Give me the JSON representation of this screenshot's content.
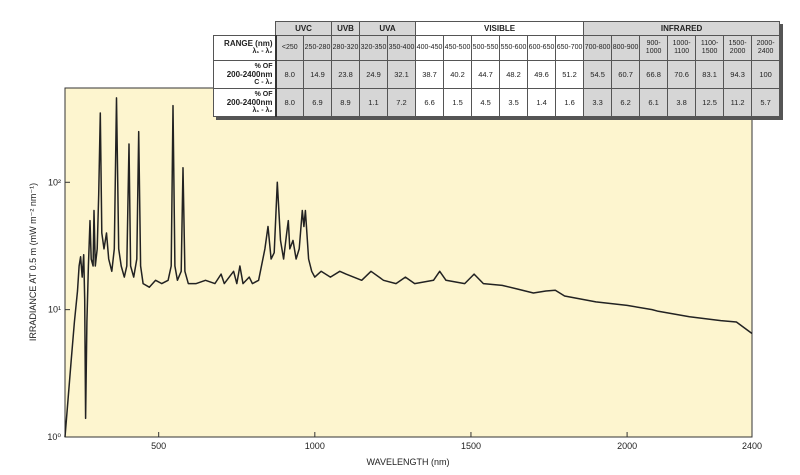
{
  "chart_data": {
    "type": "line",
    "xlabel": "WAVELENGTH (nm)",
    "ylabel": "IRRADIANCE AT 0.5 m (mW m⁻² nm⁻¹)",
    "x": [
      200,
      210,
      220,
      230,
      240,
      245,
      250,
      255,
      260,
      263,
      266,
      270,
      275,
      280,
      284,
      290,
      293,
      297,
      303,
      308,
      313,
      318,
      325,
      333,
      340,
      350,
      358,
      365,
      372,
      380,
      390,
      398,
      405,
      410,
      420,
      430,
      436,
      442,
      450,
      470,
      490,
      510,
      530,
      540,
      546,
      552,
      560,
      572,
      578,
      584,
      595,
      620,
      650,
      680,
      700,
      710,
      740,
      750,
      760,
      770,
      790,
      800,
      820,
      840,
      850,
      860,
      870,
      880,
      890,
      900,
      910,
      915,
      920,
      930,
      940,
      950,
      960,
      965,
      970,
      980,
      990,
      1000,
      1020,
      1050,
      1080,
      1100,
      1150,
      1180,
      1220,
      1260,
      1290,
      1320,
      1380,
      1400,
      1420,
      1480,
      1510,
      1540,
      1600,
      1650,
      1700,
      1740,
      1770,
      1800,
      1900,
      2000,
      2080,
      2100,
      2200,
      2300,
      2350,
      2400
    ],
    "values": [
      1,
      2,
      4,
      8,
      14,
      22,
      26,
      18,
      27,
      12,
      1.4,
      8,
      22,
      50,
      25,
      22,
      60,
      22,
      30,
      80,
      350,
      40,
      30,
      40,
      25,
      20,
      30,
      460,
      30,
      22,
      18,
      22,
      200,
      22,
      18,
      25,
      250,
      22,
      16,
      15,
      17,
      16,
      17,
      22,
      400,
      22,
      17,
      20,
      130,
      20,
      16,
      16,
      17,
      16,
      19,
      16,
      20,
      16,
      22,
      16,
      18,
      16,
      17,
      30,
      45,
      25,
      28,
      100,
      35,
      25,
      40,
      50,
      30,
      35,
      25,
      30,
      60,
      45,
      60,
      25,
      20,
      18,
      20,
      18,
      20,
      19,
      17,
      20,
      17,
      16,
      18,
      16,
      17,
      20,
      17,
      16,
      19,
      16,
      15.5,
      14.5,
      13.5,
      14,
      14.2,
      12.8,
      11.5,
      10.8,
      10,
      9.7,
      8.8,
      8.2,
      8,
      6.5
    ],
    "color": "#222222",
    "background": "#fdf5cf",
    "xlim": [
      200,
      2400
    ],
    "xticks": [
      500,
      1000,
      1500,
      2000,
      2400
    ],
    "ylim": [
      1,
      550
    ],
    "log_y": true,
    "yticks": [
      {
        "value": 1,
        "label": "10⁰"
      },
      {
        "value": 10,
        "label": "10¹"
      },
      {
        "value": 100,
        "label": "10²"
      }
    ]
  },
  "table": {
    "groups": [
      {
        "name": "UVC",
        "span": 2,
        "shade": "#d6d6d6"
      },
      {
        "name": "UVB",
        "span": 1,
        "shade": "#d6d6d6"
      },
      {
        "name": "UVA",
        "span": 2,
        "shade": "#d6d6d6"
      },
      {
        "name": "VISIBLE",
        "span": 6,
        "shade": "#ffffff"
      },
      {
        "name": "INFRARED",
        "span": 7,
        "shade": "#d6d6d6"
      }
    ],
    "row_labels": [
      [
        "RANGE (nm)",
        "λ₁ - λ₂"
      ],
      [
        "% OF",
        "200-2400nm",
        "C - λ₂"
      ],
      [
        "% OF",
        "200-2400nm",
        "λ₁ - λ₂"
      ]
    ],
    "rows": [
      [
        "<250",
        "250-280",
        "280-320",
        "320-350",
        "350-400",
        "400-450",
        "450-500",
        "500-550",
        "550-600",
        "600-650",
        "650-700",
        "700-800",
        "800-900",
        "900-1000",
        "1000-1100",
        "1100-1500",
        "1500-2000",
        "2000-2400"
      ],
      [
        "8.0",
        "14.9",
        "23.8",
        "24.9",
        "32.1",
        "38.7",
        "40.2",
        "44.7",
        "48.2",
        "49.6",
        "51.2",
        "54.5",
        "60.7",
        "66.8",
        "70.6",
        "83.1",
        "94.3",
        "100"
      ],
      [
        "8.0",
        "6.9",
        "8.9",
        "1.1",
        "7.2",
        "6.6",
        "1.5",
        "4.5",
        "3.5",
        "1.4",
        "1.6",
        "3.3",
        "6.2",
        "6.1",
        "3.8",
        "12.5",
        "11.2",
        "5.7"
      ]
    ]
  }
}
